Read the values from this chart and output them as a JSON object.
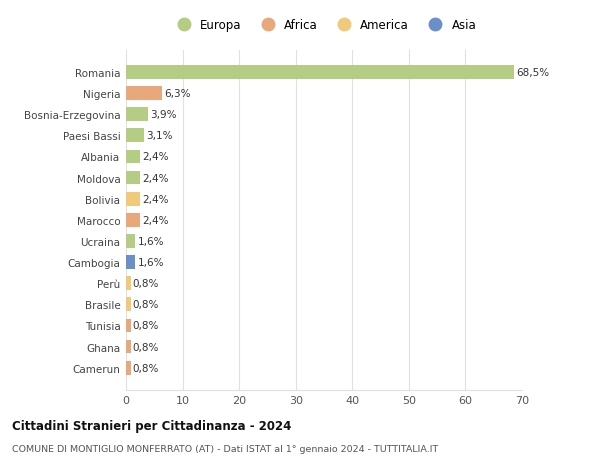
{
  "categories": [
    "Camerun",
    "Ghana",
    "Tunisia",
    "Brasile",
    "Perù",
    "Cambogia",
    "Ucraina",
    "Marocco",
    "Bolivia",
    "Moldova",
    "Albania",
    "Paesi Bassi",
    "Bosnia-Erzegovina",
    "Nigeria",
    "Romania"
  ],
  "values": [
    0.8,
    0.8,
    0.8,
    0.8,
    0.8,
    1.6,
    1.6,
    2.4,
    2.4,
    2.4,
    2.4,
    3.1,
    3.9,
    6.3,
    68.5
  ],
  "labels": [
    "0,8%",
    "0,8%",
    "0,8%",
    "0,8%",
    "0,8%",
    "1,6%",
    "1,6%",
    "2,4%",
    "2,4%",
    "2,4%",
    "2,4%",
    "3,1%",
    "3,9%",
    "6,3%",
    "68,5%"
  ],
  "colors": [
    "#e8a87c",
    "#e8a87c",
    "#e8a87c",
    "#f0c97a",
    "#f0c97a",
    "#6b8fc9",
    "#b5cc85",
    "#e8a87c",
    "#f0c97a",
    "#b5cc85",
    "#b5cc85",
    "#b5cc85",
    "#b5cc85",
    "#e8a87c",
    "#b5cc85"
  ],
  "continent_colors": {
    "Europa": "#b5cc85",
    "Africa": "#e8a87c",
    "America": "#f0c97a",
    "Asia": "#6b8fc9"
  },
  "legend_order": [
    "Europa",
    "Africa",
    "America",
    "Asia"
  ],
  "title": "Cittadini Stranieri per Cittadinanza - 2024",
  "subtitle": "COMUNE DI MONTIGLIO MONFERRATO (AT) - Dati ISTAT al 1° gennaio 2024 - TUTTITALIA.IT",
  "xlim": [
    0,
    70
  ],
  "xticks": [
    0,
    10,
    20,
    30,
    40,
    50,
    60,
    70
  ],
  "bg_color": "#ffffff",
  "grid_color": "#e0e0e0"
}
